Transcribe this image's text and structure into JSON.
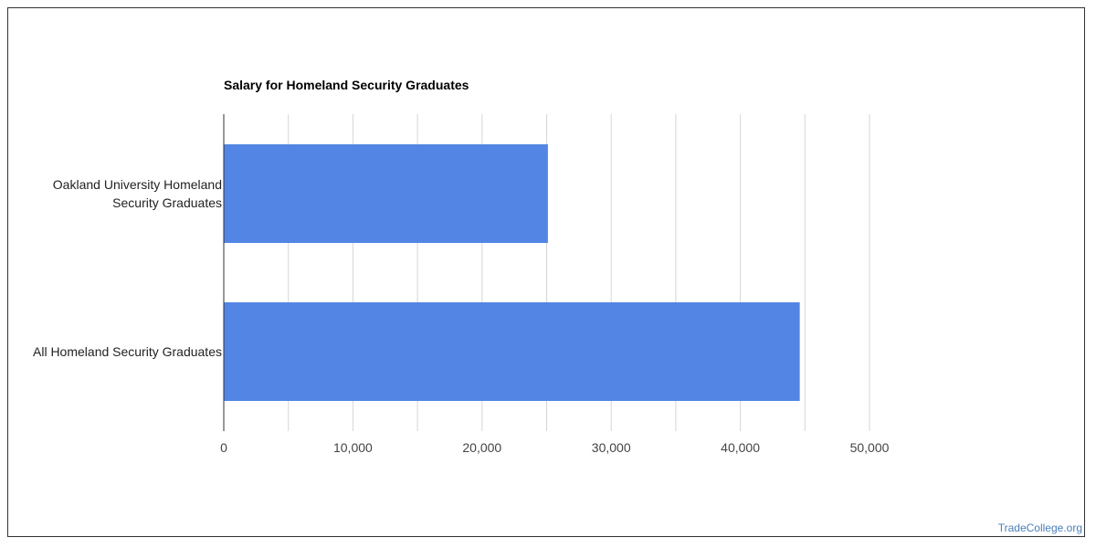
{
  "chart_data": {
    "type": "bar",
    "orientation": "horizontal",
    "title": "Salary for Homeland Security Graduates",
    "categories": [
      [
        "Oakland University Homeland",
        "Security Graduates"
      ],
      [
        "All Homeland Security Graduates"
      ]
    ],
    "values": [
      25100,
      44600
    ],
    "xlim": [
      0,
      50000
    ],
    "x_ticks": [
      0,
      10000,
      20000,
      30000,
      40000,
      50000
    ],
    "x_tick_labels": [
      "0",
      "10,000",
      "20,000",
      "30,000",
      "40,000",
      "50,000"
    ],
    "grid": true,
    "bar_color": "#5386e4"
  },
  "watermark": "TradeCollege.org"
}
